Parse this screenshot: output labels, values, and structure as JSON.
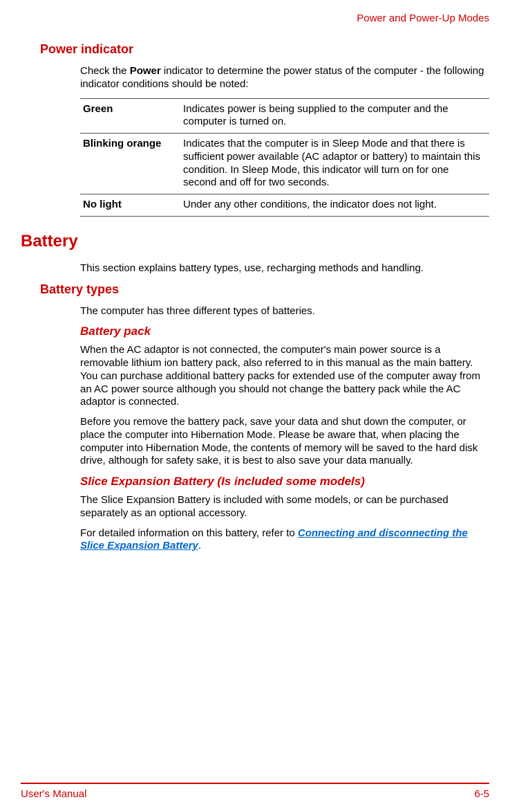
{
  "header": {
    "running": "Power and Power-Up Modes"
  },
  "s1": {
    "title": "Power indicator",
    "intro_pre": "Check the ",
    "intro_bold": "Power",
    "intro_post": " indicator to determine the power status of the computer - the following indicator conditions should be noted:",
    "rows": [
      {
        "label": "Green",
        "desc": "Indicates power is being supplied to the computer and the computer is turned on."
      },
      {
        "label": "Blinking orange",
        "desc": "Indicates that the computer is in Sleep Mode and that there is sufficient power available (AC adaptor or battery) to maintain this condition. In Sleep Mode, this indicator will turn on for one second and off for two seconds."
      },
      {
        "label": "No light",
        "desc": "Under any other conditions, the indicator does not light."
      }
    ]
  },
  "s2": {
    "title": "Battery",
    "intro": "This section explains battery types, use, recharging methods and handling."
  },
  "s3": {
    "title": "Battery types",
    "intro": "The computer has three different types of batteries."
  },
  "s4": {
    "title": "Battery pack",
    "p1": "When the AC adaptor is not connected, the computer's main power source is a removable lithium ion battery pack, also referred to in this manual as the main battery. You can purchase additional battery packs for extended use of the computer away from an AC power source although you should not change the battery pack while the AC adaptor is connected.",
    "p2": "Before you remove the battery pack, save your data and shut down the computer, or place the computer into Hibernation Mode. Please be aware that, when placing the computer into Hibernation Mode, the contents of memory will be saved to the hard disk drive, although for safety sake, it is best to also save your data manually."
  },
  "s5": {
    "title": "Slice Expansion Battery (Is included some models)",
    "p1": "The Slice Expansion Battery is included with some models, or can be purchased separately as an optional accessory.",
    "p2_pre": "For detailed information on this battery, refer to ",
    "p2_link": "Connecting and disconnecting the Slice Expansion Battery",
    "p2_post": "."
  },
  "footer": {
    "left": "User's Manual",
    "right": "6-5"
  },
  "colors": {
    "accent": "#cc0000",
    "link": "#0066cc",
    "rule": "#555555",
    "text": "#000000",
    "bg": "#ffffff"
  },
  "typography": {
    "body_pt": 15,
    "h1_pt": 24,
    "h2_pt": 18,
    "h3_pt": 17,
    "family": "Arial"
  }
}
